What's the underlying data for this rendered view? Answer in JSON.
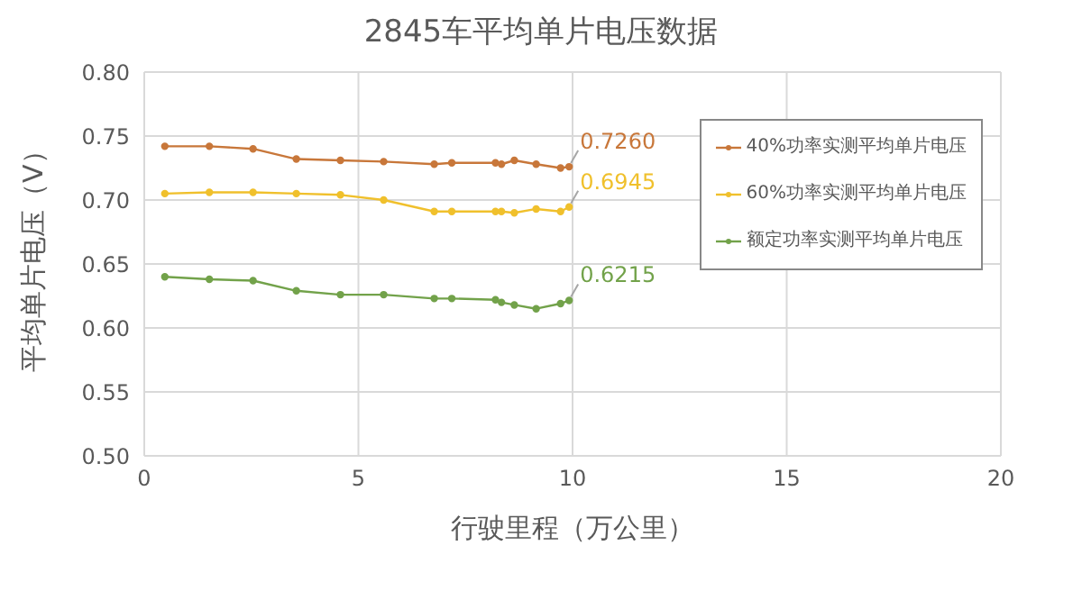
{
  "chart_data": {
    "type": "line",
    "title": "2845车平均单片电压数据",
    "xlabel": "行驶里程（万公里）",
    "ylabel": "平均单片电压（V）",
    "x": [
      0.48,
      1.52,
      2.54,
      3.55,
      4.58,
      5.59,
      6.77,
      7.18,
      8.2,
      8.34,
      8.64,
      9.15,
      9.72,
      9.92
    ],
    "series": [
      {
        "name": "40%功率实测平均单片电压",
        "color": "#c8773a",
        "values": [
          0.742,
          0.742,
          0.74,
          0.732,
          0.731,
          0.73,
          0.728,
          0.729,
          0.729,
          0.728,
          0.731,
          0.728,
          0.725,
          0.726
        ]
      },
      {
        "name": "60%功率实测平均单片电压",
        "color": "#f0c02c",
        "values": [
          0.705,
          0.706,
          0.706,
          0.705,
          0.704,
          0.7,
          0.691,
          0.691,
          0.691,
          0.691,
          0.69,
          0.693,
          0.691,
          0.6945
        ]
      },
      {
        "name": "额定功率实测平均单片电压",
        "color": "#72a24a",
        "values": [
          0.64,
          0.638,
          0.637,
          0.629,
          0.626,
          0.626,
          0.623,
          0.623,
          0.622,
          0.62,
          0.618,
          0.615,
          0.619,
          0.6215
        ]
      }
    ],
    "annotations": [
      "0.7260",
      "0.6945",
      "0.6215"
    ],
    "xlim": [
      0,
      20
    ],
    "xticks": [
      0,
      5,
      10,
      15,
      20
    ],
    "ylim": [
      0.5,
      0.8
    ],
    "yticks": [
      {
        "value": 0.5,
        "label": "0.50"
      },
      0.55,
      {
        "value": 0.6,
        "label": "0.60"
      },
      0.65,
      {
        "value": 0.7,
        "label": "0.70"
      },
      0.75,
      {
        "value": 0.8,
        "label": "0.80"
      }
    ],
    "grid": true,
    "legend": "top right",
    "marker": "circle",
    "line_style": "solid"
  }
}
